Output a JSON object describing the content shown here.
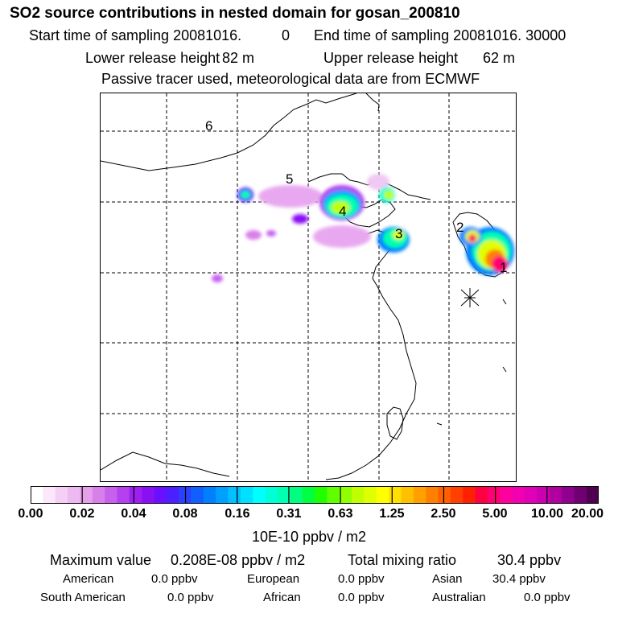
{
  "title": "SO2 source contributions in nested domain for gosan_200810",
  "header": {
    "start_label": "Start time of sampling 20081016.",
    "start_hour": "0",
    "end_label": "End time of sampling 20081016. 30000",
    "lower_label": "Lower release height",
    "lower_value": "82 m",
    "upper_label": "Upper release height",
    "upper_value": "62 m",
    "tracer": "Passive tracer used, meteorological data are from ECMWF"
  },
  "map": {
    "region_labels": [
      "1",
      "2",
      "3",
      "4",
      "5",
      "6"
    ],
    "station_marker": "asterisk-icon"
  },
  "colorbar": {
    "ticks": [
      "0.00",
      "0.02",
      "0.04",
      "0.08",
      "0.16",
      "0.31",
      "0.63",
      "1.25",
      "2.50",
      "5.00",
      "10.00",
      "20.00"
    ],
    "colors": [
      "#ffffff",
      "#fbe8fb",
      "#f5d0f5",
      "#eeb8f0",
      "#e6a0ea",
      "#d880ea",
      "#c860ee",
      "#b440f0",
      "#9e20f0",
      "#8a10f4",
      "#6a10ff",
      "#4a20ff",
      "#2a40ff",
      "#1060ff",
      "#0080ff",
      "#00a0ff",
      "#00c0ff",
      "#00e0ff",
      "#00ffff",
      "#00ffd8",
      "#00ffb0",
      "#00ff80",
      "#00ff40",
      "#20ff00",
      "#60ff00",
      "#90ff00",
      "#c0ff00",
      "#e0ff00",
      "#ffff00",
      "#ffe000",
      "#ffc000",
      "#ffa000",
      "#ff8000",
      "#ff6000",
      "#ff4000",
      "#ff2000",
      "#ff0040",
      "#ff0070",
      "#ff00a0",
      "#f000b0",
      "#e000b8",
      "#cc00b0",
      "#b000a0",
      "#900090",
      "#700070",
      "#500050"
    ],
    "unit": "10E-10 ppbv / m2"
  },
  "summary": {
    "max_label": "Maximum value",
    "max_value": "0.208E-08 ppbv / m2",
    "total_label": "Total mixing ratio",
    "total_value": "30.4 ppbv",
    "regions": [
      {
        "name": "American",
        "value": "0.0 ppbv"
      },
      {
        "name": "European",
        "value": "0.0 ppbv"
      },
      {
        "name": "Asian",
        "value": "30.4 ppbv"
      },
      {
        "name": "South American",
        "value": "0.0 ppbv"
      },
      {
        "name": "African",
        "value": "0.0 ppbv"
      },
      {
        "name": "Australian",
        "value": "0.0 ppbv"
      }
    ]
  }
}
